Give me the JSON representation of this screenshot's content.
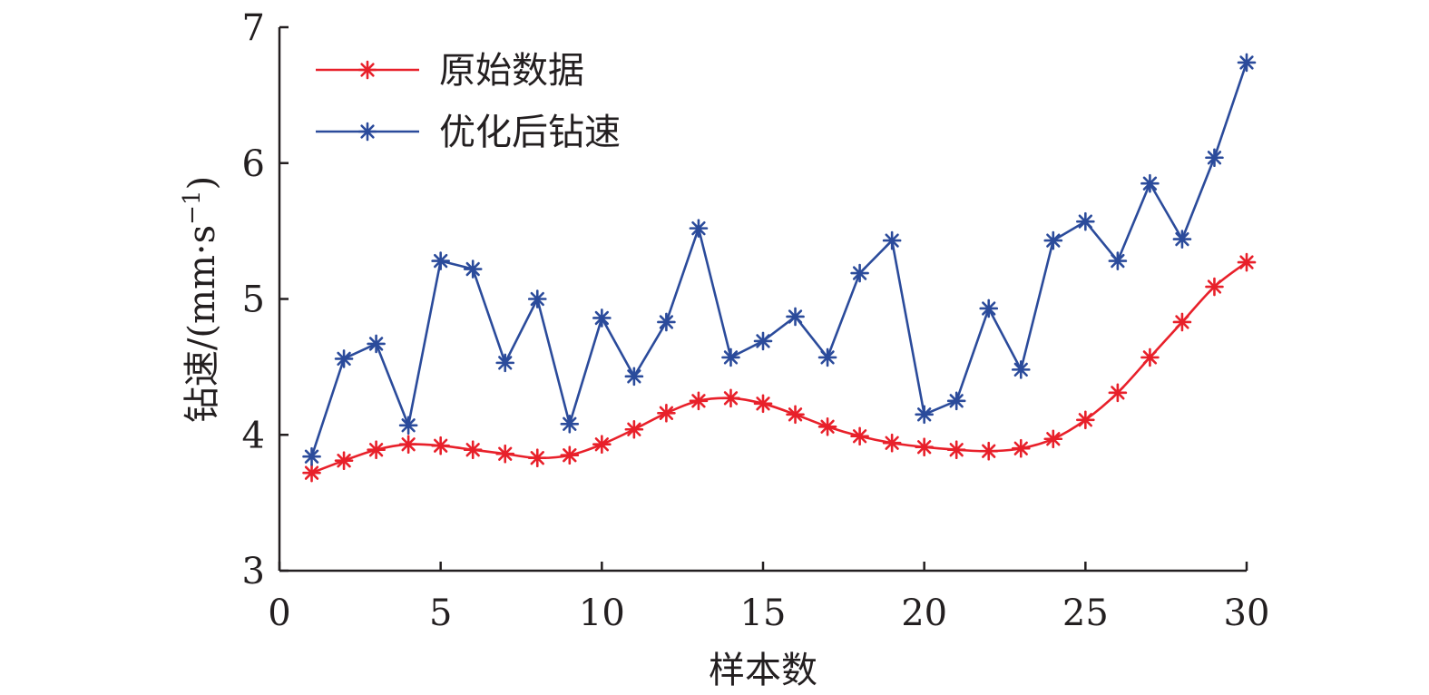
{
  "chart_data": {
    "type": "line",
    "xlabel": "样本数",
    "ylabel": "钻速/(mm·s",
    "ylabel_sup": "−1",
    "ylabel_tail": ")",
    "xlim": [
      0,
      30
    ],
    "ylim": [
      3,
      7
    ],
    "xticks": [
      0,
      5,
      10,
      15,
      20,
      25,
      30
    ],
    "yticks": [
      3,
      4,
      5,
      6,
      7
    ],
    "grid": false,
    "legend_position": "top-left",
    "marker": "asterisk",
    "x": [
      1,
      2,
      3,
      4,
      5,
      6,
      7,
      8,
      9,
      10,
      11,
      12,
      13,
      14,
      15,
      16,
      17,
      18,
      19,
      20,
      21,
      22,
      23,
      24,
      25,
      26,
      27,
      28,
      29,
      30
    ],
    "series": [
      {
        "name": "原始数据",
        "color": "#e8202a",
        "smooth": true,
        "values": [
          3.72,
          3.81,
          3.89,
          3.93,
          3.92,
          3.89,
          3.86,
          3.83,
          3.85,
          3.93,
          4.04,
          4.16,
          4.25,
          4.27,
          4.23,
          4.15,
          4.06,
          3.99,
          3.94,
          3.91,
          3.89,
          3.88,
          3.9,
          3.97,
          4.11,
          4.31,
          4.57,
          4.83,
          5.09,
          5.27
        ]
      },
      {
        "name": "优化后钻速",
        "color": "#2b4b9b",
        "smooth": false,
        "values": [
          3.84,
          4.56,
          4.67,
          4.07,
          5.28,
          5.22,
          4.53,
          5.0,
          4.08,
          4.86,
          4.43,
          4.83,
          5.52,
          4.57,
          4.69,
          4.87,
          4.57,
          5.19,
          5.43,
          4.15,
          4.25,
          4.93,
          4.48,
          5.43,
          5.57,
          5.28,
          5.85,
          5.44,
          6.04,
          6.74
        ]
      }
    ]
  }
}
